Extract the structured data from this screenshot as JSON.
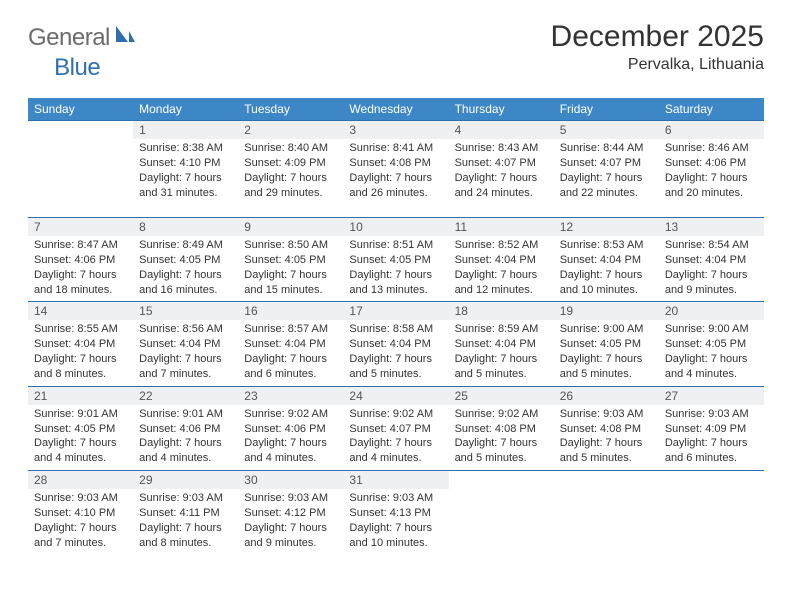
{
  "brand": {
    "part1": "General",
    "part2": "Blue"
  },
  "title": "December 2025",
  "location": "Pervalka, Lithuania",
  "colors": {
    "header_bg": "#3d87c7",
    "header_fg": "#ffffff",
    "rule": "#2f6fb0",
    "daynum_bg": "#eef0f1",
    "text": "#333333",
    "logo_gray": "#6b6b6b",
    "logo_blue": "#2f6fb0",
    "page_bg": "#ffffff"
  },
  "calendar": {
    "weekday_labels": [
      "Sunday",
      "Monday",
      "Tuesday",
      "Wednesday",
      "Thursday",
      "Friday",
      "Saturday"
    ],
    "first_weekday_index": 1,
    "days": [
      {
        "n": 1,
        "sunrise": "8:38 AM",
        "sunset": "4:10 PM",
        "daylight": "7 hours and 31 minutes."
      },
      {
        "n": 2,
        "sunrise": "8:40 AM",
        "sunset": "4:09 PM",
        "daylight": "7 hours and 29 minutes."
      },
      {
        "n": 3,
        "sunrise": "8:41 AM",
        "sunset": "4:08 PM",
        "daylight": "7 hours and 26 minutes."
      },
      {
        "n": 4,
        "sunrise": "8:43 AM",
        "sunset": "4:07 PM",
        "daylight": "7 hours and 24 minutes."
      },
      {
        "n": 5,
        "sunrise": "8:44 AM",
        "sunset": "4:07 PM",
        "daylight": "7 hours and 22 minutes."
      },
      {
        "n": 6,
        "sunrise": "8:46 AM",
        "sunset": "4:06 PM",
        "daylight": "7 hours and 20 minutes."
      },
      {
        "n": 7,
        "sunrise": "8:47 AM",
        "sunset": "4:06 PM",
        "daylight": "7 hours and 18 minutes."
      },
      {
        "n": 8,
        "sunrise": "8:49 AM",
        "sunset": "4:05 PM",
        "daylight": "7 hours and 16 minutes."
      },
      {
        "n": 9,
        "sunrise": "8:50 AM",
        "sunset": "4:05 PM",
        "daylight": "7 hours and 15 minutes."
      },
      {
        "n": 10,
        "sunrise": "8:51 AM",
        "sunset": "4:05 PM",
        "daylight": "7 hours and 13 minutes."
      },
      {
        "n": 11,
        "sunrise": "8:52 AM",
        "sunset": "4:04 PM",
        "daylight": "7 hours and 12 minutes."
      },
      {
        "n": 12,
        "sunrise": "8:53 AM",
        "sunset": "4:04 PM",
        "daylight": "7 hours and 10 minutes."
      },
      {
        "n": 13,
        "sunrise": "8:54 AM",
        "sunset": "4:04 PM",
        "daylight": "7 hours and 9 minutes."
      },
      {
        "n": 14,
        "sunrise": "8:55 AM",
        "sunset": "4:04 PM",
        "daylight": "7 hours and 8 minutes."
      },
      {
        "n": 15,
        "sunrise": "8:56 AM",
        "sunset": "4:04 PM",
        "daylight": "7 hours and 7 minutes."
      },
      {
        "n": 16,
        "sunrise": "8:57 AM",
        "sunset": "4:04 PM",
        "daylight": "7 hours and 6 minutes."
      },
      {
        "n": 17,
        "sunrise": "8:58 AM",
        "sunset": "4:04 PM",
        "daylight": "7 hours and 5 minutes."
      },
      {
        "n": 18,
        "sunrise": "8:59 AM",
        "sunset": "4:04 PM",
        "daylight": "7 hours and 5 minutes."
      },
      {
        "n": 19,
        "sunrise": "9:00 AM",
        "sunset": "4:05 PM",
        "daylight": "7 hours and 5 minutes."
      },
      {
        "n": 20,
        "sunrise": "9:00 AM",
        "sunset": "4:05 PM",
        "daylight": "7 hours and 4 minutes."
      },
      {
        "n": 21,
        "sunrise": "9:01 AM",
        "sunset": "4:05 PM",
        "daylight": "7 hours and 4 minutes."
      },
      {
        "n": 22,
        "sunrise": "9:01 AM",
        "sunset": "4:06 PM",
        "daylight": "7 hours and 4 minutes."
      },
      {
        "n": 23,
        "sunrise": "9:02 AM",
        "sunset": "4:06 PM",
        "daylight": "7 hours and 4 minutes."
      },
      {
        "n": 24,
        "sunrise": "9:02 AM",
        "sunset": "4:07 PM",
        "daylight": "7 hours and 4 minutes."
      },
      {
        "n": 25,
        "sunrise": "9:02 AM",
        "sunset": "4:08 PM",
        "daylight": "7 hours and 5 minutes."
      },
      {
        "n": 26,
        "sunrise": "9:03 AM",
        "sunset": "4:08 PM",
        "daylight": "7 hours and 5 minutes."
      },
      {
        "n": 27,
        "sunrise": "9:03 AM",
        "sunset": "4:09 PM",
        "daylight": "7 hours and 6 minutes."
      },
      {
        "n": 28,
        "sunrise": "9:03 AM",
        "sunset": "4:10 PM",
        "daylight": "7 hours and 7 minutes."
      },
      {
        "n": 29,
        "sunrise": "9:03 AM",
        "sunset": "4:11 PM",
        "daylight": "7 hours and 8 minutes."
      },
      {
        "n": 30,
        "sunrise": "9:03 AM",
        "sunset": "4:12 PM",
        "daylight": "7 hours and 9 minutes."
      },
      {
        "n": 31,
        "sunrise": "9:03 AM",
        "sunset": "4:13 PM",
        "daylight": "7 hours and 10 minutes."
      }
    ]
  },
  "labels": {
    "sunrise_prefix": "Sunrise: ",
    "sunset_prefix": "Sunset: ",
    "daylight_prefix": "Daylight: "
  },
  "typography": {
    "title_fontsize": 30,
    "location_fontsize": 16,
    "weekday_fontsize": 12,
    "daynum_fontsize": 12,
    "body_fontsize": 11
  }
}
